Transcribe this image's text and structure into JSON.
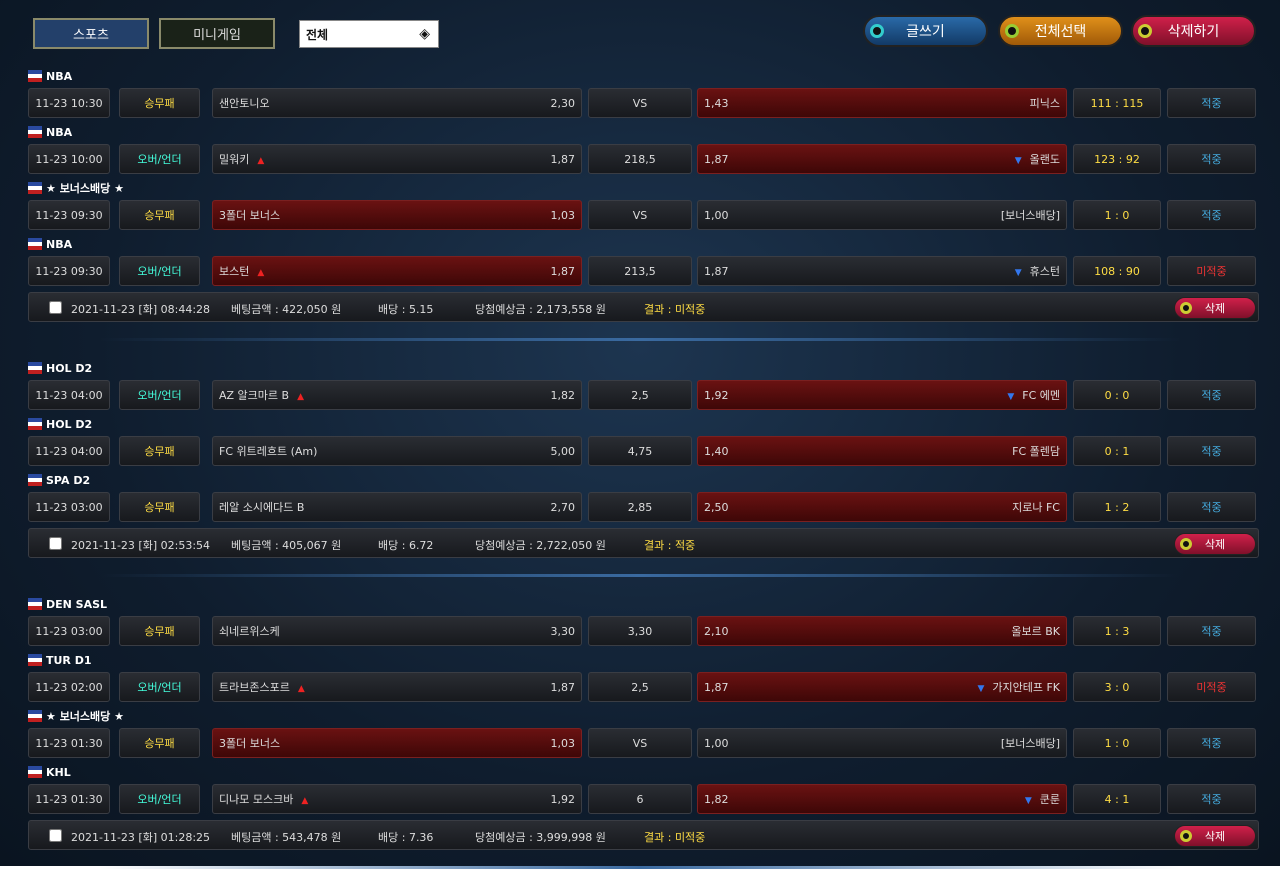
{
  "tabs": [
    "스포츠",
    "미니게임"
  ],
  "filter": "전체",
  "buttons": [
    "글쓰기",
    "전체선택",
    "삭제하기"
  ],
  "bets": [
    {
      "games": [
        {
          "league": "NBA",
          "time": "11-23 10:30",
          "type": "승무패",
          "home": "샌안토니오",
          "home_odds": "2,30",
          "mid": "VS",
          "away_odds": "1,43",
          "away": "피닉스",
          "score": "111 : 115",
          "result": "적중",
          "pick": "away",
          "hit": true,
          "arrows": false
        },
        {
          "league": "NBA",
          "time": "11-23 10:00",
          "type": "오버/언더",
          "home": "밀워키",
          "home_odds": "1,87",
          "mid": "218,5",
          "away_odds": "1,87",
          "away": "올랜도",
          "score": "123 : 92",
          "result": "적중",
          "pick": "away",
          "hit": true,
          "arrows": true
        },
        {
          "league": "★ 보너스배당 ★",
          "time": "11-23 09:30",
          "type": "승무패",
          "home": "3폴더 보너스",
          "home_odds": "1,03",
          "mid": "VS",
          "away_odds": "1,00",
          "away": "[보너스배당]",
          "score": "1 : 0",
          "result": "적중",
          "pick": "home",
          "hit": true,
          "arrows": false
        },
        {
          "league": "NBA",
          "time": "11-23 09:30",
          "type": "오버/언더",
          "home": "보스턴",
          "home_odds": "1,87",
          "mid": "213,5",
          "away_odds": "1,87",
          "away": "휴스턴",
          "score": "108 : 90",
          "result": "미적중",
          "pick": "home",
          "hit": false,
          "arrows": true
        }
      ],
      "summary": {
        "date": "2021-11-23 [화] 08:44:28",
        "amount": "베팅금액 : 422,050 원",
        "odds": "배당 : 5.15",
        "expected": "당첨예상금 : 2,173,558 원",
        "result": "결과 : 미적중",
        "delete": "삭제"
      }
    },
    {
      "games": [
        {
          "league": "HOL D2",
          "time": "11-23 04:00",
          "type": "오버/언더",
          "home": "AZ 알크마르 B",
          "home_odds": "1,82",
          "mid": "2,5",
          "away_odds": "1,92",
          "away": "FC 에멘",
          "score": "0 : 0",
          "result": "적중",
          "pick": "away",
          "hit": true,
          "arrows": true
        },
        {
          "league": "HOL D2",
          "time": "11-23 04:00",
          "type": "승무패",
          "home": "FC 위트레흐트 (Am)",
          "home_odds": "5,00",
          "mid": "4,75",
          "away_odds": "1,40",
          "away": "FC 폴렌담",
          "score": "0 : 1",
          "result": "적중",
          "pick": "away",
          "hit": true,
          "arrows": false
        },
        {
          "league": "SPA D2",
          "time": "11-23 03:00",
          "type": "승무패",
          "home": "레알 소시에다드 B",
          "home_odds": "2,70",
          "mid": "2,85",
          "away_odds": "2,50",
          "away": "지로나 FC",
          "score": "1 : 2",
          "result": "적중",
          "pick": "away",
          "hit": true,
          "arrows": false
        }
      ],
      "summary": {
        "date": "2021-11-23 [화] 02:53:54",
        "amount": "베팅금액 : 405,067 원",
        "odds": "배당 : 6.72",
        "expected": "당첨예상금 : 2,722,050 원",
        "result": "결과 : 적중",
        "delete": "삭제"
      }
    },
    {
      "games": [
        {
          "league": "DEN SASL",
          "time": "11-23 03:00",
          "type": "승무패",
          "home": "쇠네르위스케",
          "home_odds": "3,30",
          "mid": "3,30",
          "away_odds": "2,10",
          "away": "올보르 BK",
          "score": "1 : 3",
          "result": "적중",
          "pick": "away",
          "hit": true,
          "arrows": false
        },
        {
          "league": "TUR D1",
          "time": "11-23 02:00",
          "type": "오버/언더",
          "home": "트라브존스포르",
          "home_odds": "1,87",
          "mid": "2,5",
          "away_odds": "1,87",
          "away": "가지안테프 FK",
          "score": "3 : 0",
          "result": "미적중",
          "pick": "away",
          "hit": false,
          "arrows": true
        },
        {
          "league": "★ 보너스배당 ★",
          "time": "11-23 01:30",
          "type": "승무패",
          "home": "3폴더 보너스",
          "home_odds": "1,03",
          "mid": "VS",
          "away_odds": "1,00",
          "away": "[보너스배당]",
          "score": "1 : 0",
          "result": "적중",
          "pick": "home",
          "hit": true,
          "arrows": false
        },
        {
          "league": "KHL",
          "time": "11-23 01:30",
          "type": "오버/언더",
          "home": "디나모 모스크바",
          "home_odds": "1,92",
          "mid": "6",
          "away_odds": "1,82",
          "away": "쿤룬",
          "score": "4 : 1",
          "result": "적중",
          "pick": "away",
          "hit": true,
          "arrows": true
        }
      ],
      "summary": {
        "date": "2021-11-23 [화] 01:28:25",
        "amount": "베팅금액 : 543,478 원",
        "odds": "배당 : 7.36",
        "expected": "당첨예상금 : 3,999,998 원",
        "result": "결과 : 미적중",
        "delete": "삭제"
      }
    }
  ]
}
